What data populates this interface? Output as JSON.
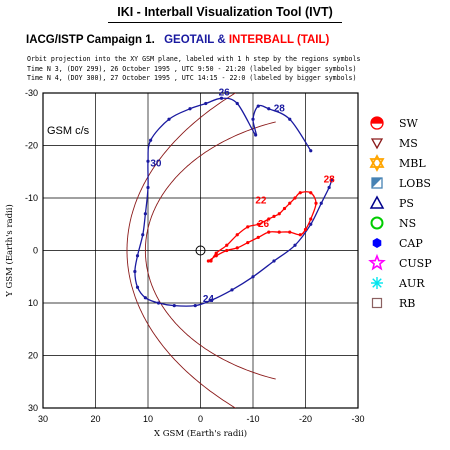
{
  "header": {
    "title": "IKI - Interball Visualization Tool (IVT)",
    "campaign": "IACG/ISTP Campaign 1.",
    "sat1": "GEOTAIL",
    "amp": "&",
    "sat2": "INTERBALL (TAIL)",
    "line1": "Orbit projection into the XY GSM plane, labeled with 1 h step by the regions symbols",
    "line2": "Time N 3, (DOY 299), 26 October  1995 , UTC 9:50 - 21:20 (labeled by bigger symbols)",
    "line3": "Time N 4, (DOY 300), 27 October  1995 , UTC 14:15 - 22:0 (labeled by bigger symbols)"
  },
  "colors": {
    "sat1": "#1a1aa0",
    "sat2": "#ff0000",
    "boundary": "#8b1a1a"
  },
  "chart_data": {
    "type": "scatter",
    "xlabel": "X GSM (Earth's radii)",
    "ylabel": "Y GSM (Earth's radii)",
    "frame_label": "GSM c/s",
    "xlim": [
      30,
      -30
    ],
    "ylim": [
      -30,
      30
    ],
    "xticks": [
      30,
      20,
      10,
      0,
      -10,
      -20,
      -30
    ],
    "yticks": [
      -30,
      -20,
      -10,
      0,
      10,
      20,
      30
    ],
    "grid": true,
    "legend_position": "right",
    "legend": [
      {
        "label": "SW",
        "symbol": "sw",
        "color": "#ff0000"
      },
      {
        "label": "MS",
        "symbol": "triangle-down",
        "color": "#8b1a1a"
      },
      {
        "label": "MBL",
        "symbol": "star6",
        "color": "#ffa500"
      },
      {
        "label": "LOBS",
        "symbol": "half-square",
        "color": "#4682b4"
      },
      {
        "label": "PS",
        "symbol": "triangle-up",
        "color": "#00008b"
      },
      {
        "label": "NS",
        "symbol": "circle",
        "color": "#00cc00"
      },
      {
        "label": "CAP",
        "symbol": "hexagon",
        "color": "#0000ff"
      },
      {
        "label": "CUSP",
        "symbol": "star5",
        "color": "#ff00ff"
      },
      {
        "label": "AUR",
        "symbol": "asterisk",
        "color": "#00e5ee"
      },
      {
        "label": "RB",
        "symbol": "square",
        "color": "#8b6060"
      }
    ],
    "hour_labels": [
      {
        "text": "26",
        "x": -4.5,
        "y": -29.5,
        "color": "#1a1aa0"
      },
      {
        "text": "28",
        "x": -15,
        "y": -26.5,
        "color": "#1a1aa0"
      },
      {
        "text": "30",
        "x": 8.5,
        "y": -16,
        "color": "#1a1aa0"
      },
      {
        "text": "28",
        "x": -24.5,
        "y": -13,
        "color": "#ff0000"
      },
      {
        "text": "22",
        "x": -11.5,
        "y": -9,
        "color": "#ff0000"
      },
      {
        "text": "26",
        "x": -12,
        "y": -4.5,
        "color": "#ff0000"
      },
      {
        "text": "24",
        "x": -1.5,
        "y": 9.8,
        "color": "#1a1aa0"
      }
    ],
    "series": [
      {
        "name": "GEOTAIL",
        "color": "#1a1aa0",
        "x": [
          -21,
          -17,
          -13,
          -11,
          -10,
          -10.5,
          -7,
          -4,
          -1,
          2,
          6,
          9.5,
          10,
          10,
          10.5,
          11,
          12,
          12.5,
          12,
          10.5,
          8,
          5,
          1,
          -2,
          -6,
          -10,
          -14,
          -18,
          -21,
          -23,
          -24.5,
          -25
        ],
        "y": [
          -19,
          -25,
          -27,
          -27.5,
          -25,
          -22,
          -28,
          -29,
          -28,
          -27,
          -25,
          -21,
          -17,
          -12,
          -7,
          -3,
          1,
          4,
          7,
          9,
          10,
          10.5,
          10.5,
          9.5,
          7.5,
          5,
          2,
          -1,
          -5,
          -9,
          -12,
          -13.5
        ]
      },
      {
        "name": "INTERBALL (TAIL)",
        "color": "#ff0000",
        "x": [
          -1.5,
          -3,
          -5,
          -7,
          -9,
          -11,
          -13,
          -15,
          -17,
          -19,
          -20,
          -21,
          -22,
          -21,
          -19,
          -18,
          -17,
          -16,
          -15,
          -14,
          -13,
          -11,
          -9,
          -7,
          -5,
          -3,
          -2
        ],
        "y": [
          2,
          1,
          0,
          -0.5,
          -1.5,
          -2.5,
          -3.5,
          -3.5,
          -3.5,
          -3,
          -4,
          -6,
          -9,
          -11,
          -11,
          -10,
          -9,
          -8,
          -7,
          -6.5,
          -6,
          -5,
          -4.5,
          -3,
          -1,
          0.5,
          2
        ]
      }
    ],
    "boundaries": [
      {
        "name": "magnetopause",
        "color": "#8b1a1a"
      },
      {
        "name": "bow-shock",
        "color": "#8b1a1a"
      }
    ]
  }
}
